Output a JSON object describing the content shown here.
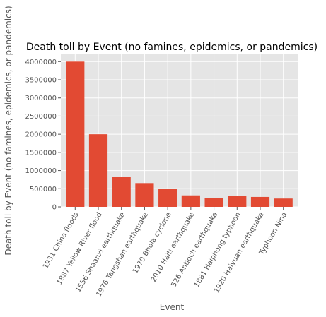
{
  "chart_data": {
    "type": "bar",
    "title": "Death toll by Event (no famines, epidemics, or pandemics)",
    "xlabel": "Event",
    "ylabel": "Death toll by Event (no famines, epidemics, or pandemics)",
    "categories": [
      "1931 China floods",
      "1887 Yellow River flood",
      "1556 Shaanxi earthquake",
      "1976 Tangshan earthquake",
      "1970 Bhola cyclone",
      "2010 Haiti earthquake",
      "526 Antioch earthquake",
      "1881 Haiphong typhoon",
      "1920 Haiyuan earthquake",
      "Typhoon Nina"
    ],
    "values": [
      4000000,
      2000000,
      830000,
      655000,
      500000,
      316000,
      250000,
      300000,
      273400,
      229000
    ],
    "yticks": [
      0,
      500000,
      1000000,
      1500000,
      2000000,
      2500000,
      3000000,
      3500000,
      4000000
    ],
    "ytick_labels": [
      "0",
      "500000",
      "1000000",
      "1500000",
      "2000000",
      "2500000",
      "3000000",
      "3500000",
      "4000000"
    ],
    "ylim": [
      0,
      4200000
    ],
    "grid": true,
    "colors": {
      "bar": "#E24A33",
      "plot_background": "#E5E5E5",
      "grid": "#FFFFFF",
      "tick_text": "#555555"
    }
  }
}
